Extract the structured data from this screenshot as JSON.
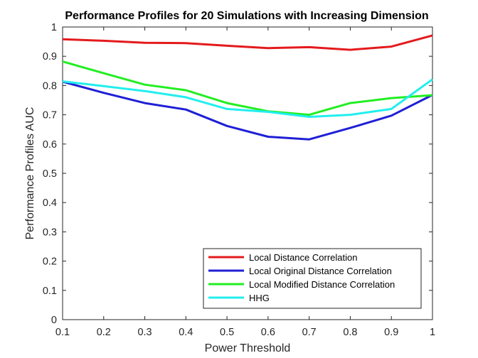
{
  "chart_data": {
    "type": "line",
    "title": "Performance Profiles for 20 Simulations with Increasing Dimension",
    "xlabel": "Power Threshold",
    "ylabel": "Performance Profiles AUC",
    "xlim": [
      0.1,
      1
    ],
    "ylim": [
      0,
      1
    ],
    "xticks": [
      0.1,
      0.2,
      0.3,
      0.4,
      0.5,
      0.6,
      0.7,
      0.8,
      0.9,
      1
    ],
    "xtick_labels": [
      "0.1",
      "0.2",
      "0.3",
      "0.4",
      "0.5",
      "0.6",
      "0.7",
      "0.8",
      "0.9",
      "1"
    ],
    "yticks": [
      0,
      0.1,
      0.2,
      0.3,
      0.4,
      0.5,
      0.6,
      0.7,
      0.8,
      0.9,
      1
    ],
    "ytick_labels": [
      "0",
      "0.1",
      "0.2",
      "0.3",
      "0.4",
      "0.5",
      "0.6",
      "0.7",
      "0.8",
      "0.9",
      "1"
    ],
    "grid": false,
    "legend_position": "bottom-right",
    "x": [
      0.1,
      0.2,
      0.3,
      0.4,
      0.5,
      0.6,
      0.7,
      0.8,
      0.9,
      1.0
    ],
    "series": [
      {
        "name": "Local Distance Correlation",
        "color": "#e41a1c",
        "values": [
          0.958,
          0.953,
          0.946,
          0.945,
          0.936,
          0.928,
          0.931,
          0.922,
          0.933,
          0.971
        ]
      },
      {
        "name": "Local Original Distance Correlation",
        "color": "#1f1fd6",
        "values": [
          0.813,
          0.775,
          0.74,
          0.718,
          0.662,
          0.625,
          0.616,
          0.655,
          0.697,
          0.768
        ]
      },
      {
        "name": "Local Modified Distance Correlation",
        "color": "#22ee22",
        "values": [
          0.882,
          0.842,
          0.803,
          0.784,
          0.74,
          0.712,
          0.7,
          0.74,
          0.757,
          0.767
        ]
      },
      {
        "name": "HHG",
        "color": "#22eeee",
        "values": [
          0.814,
          0.798,
          0.781,
          0.76,
          0.72,
          0.71,
          0.693,
          0.7,
          0.72,
          0.821
        ]
      }
    ]
  }
}
